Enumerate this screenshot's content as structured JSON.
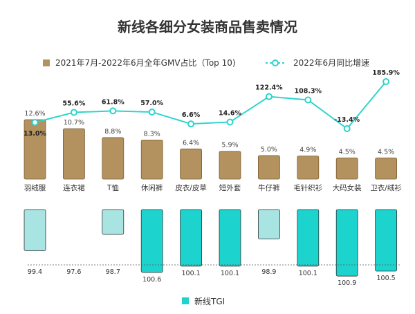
{
  "chart_data": {
    "type": "bar",
    "title": "新线各细分女装商品售卖情况",
    "categories": [
      "羽绒服",
      "连衣裙",
      "T恤",
      "休闲裤",
      "皮衣/皮草",
      "短外套",
      "牛仔裤",
      "毛针织衫",
      "大码女装",
      "卫衣/绒衫"
    ],
    "series": [
      {
        "name": "2021年7月-2022年6月全年GMV占比（Top 10)",
        "type": "bar",
        "values": [
          12.6,
          10.7,
          8.8,
          8.3,
          6.4,
          5.9,
          5.0,
          4.9,
          4.5,
          4.5
        ],
        "labels": [
          "12.6%",
          "10.7%",
          "8.8%",
          "8.3%",
          "6.4%",
          "5.9%",
          "5.0%",
          "4.9%",
          "4.5%",
          "4.5%"
        ],
        "color": "#B3925F"
      },
      {
        "name": "2022年6月同比增速",
        "type": "line",
        "values": [
          13.0,
          55.6,
          61.8,
          57.0,
          6.6,
          14.6,
          122.4,
          108.3,
          -13.4,
          185.9
        ],
        "labels": [
          "13.0%",
          "55.6%",
          "61.8%",
          "57.0%",
          "6.6%",
          "14.6%",
          "122.4%",
          "108.3%",
          "-13.4%",
          "185.9%"
        ],
        "color": "#2DD4CC"
      },
      {
        "name": "新线TGI",
        "type": "bar",
        "values": [
          99.4,
          97.6,
          98.7,
          100.6,
          100.1,
          100.1,
          98.9,
          100.1,
          100.9,
          100.5
        ],
        "labels": [
          "99.4",
          "97.6",
          "98.7",
          "100.6",
          "100.1",
          "100.1",
          "98.9",
          "100.1",
          "100.9",
          "100.5"
        ],
        "baseline": 100,
        "color_above": "#1DD3CD",
        "color_below": "#A8E4E2"
      }
    ],
    "xlabel": "",
    "ylabel": ""
  }
}
